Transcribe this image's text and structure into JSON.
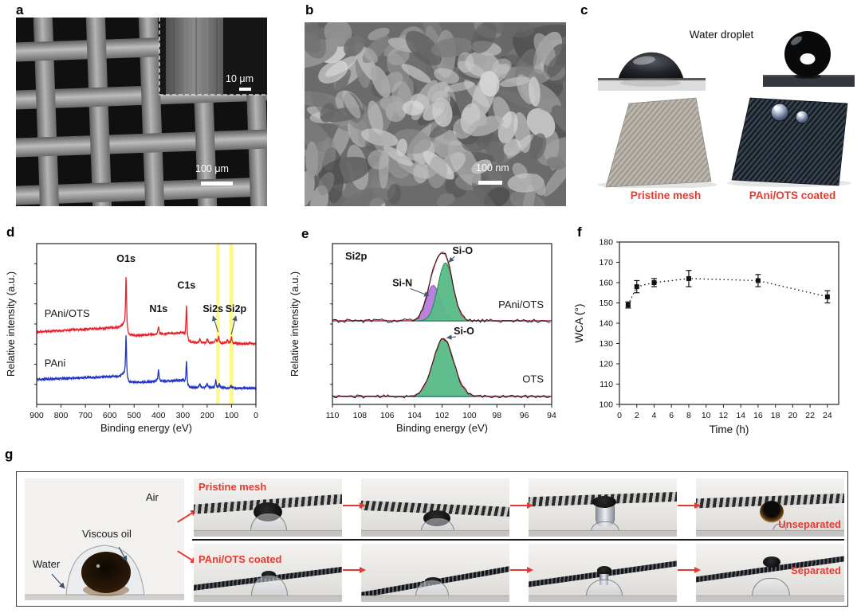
{
  "figure": {
    "panels": {
      "a": {
        "letter": "a",
        "scale_bar": "100 μm",
        "inset_scale_bar": "10 μm"
      },
      "b": {
        "letter": "b",
        "scale_bar": "100 nm"
      },
      "c": {
        "letter": "c",
        "heading": "Water droplet",
        "left_caption": "Pristine mesh",
        "right_caption": "PAni/OTS coated"
      },
      "d": {
        "letter": "d"
      },
      "e": {
        "letter": "e"
      },
      "f": {
        "letter": "f"
      },
      "g": {
        "letter": "g",
        "air_label": "Air",
        "oil_label": "Viscous oil",
        "water_label": "Water",
        "row1_label": "Pristine mesh",
        "row2_label": "PAni/OTS coated",
        "row1_result": "Unseparated",
        "row2_result": "Separated"
      }
    },
    "colors": {
      "accent_red": "#e8392f",
      "survey_red": "#e8232a",
      "survey_blue": "#2133c7",
      "fit_green": "#57bb86",
      "fit_green_stroke": "#1f8a4d",
      "fit_purple": "#b57bdb",
      "fit_purple_stroke": "#8b52c9",
      "fit_envelope_red": "#e04b55",
      "baseline_blue": "#2b3f9e",
      "highlight_yellow": "#fcf873",
      "annotation_arrow": "#44586e"
    }
  },
  "chart_data": [
    {
      "id": "xps-survey",
      "panel": "d",
      "type": "line",
      "xlabel": "Binding energy (eV)",
      "ylabel": "Relative intensity (a.u.)",
      "x_range": [
        900,
        0
      ],
      "x_ticks": [
        900,
        800,
        700,
        600,
        500,
        400,
        300,
        200,
        100,
        0
      ],
      "highlight_bands": [
        {
          "center": 156,
          "width": 14
        },
        {
          "center": 101,
          "width": 16
        }
      ],
      "series": [
        {
          "name": "PAni",
          "color_key": "survey_blue",
          "label_x": 868,
          "label_y": 0.235,
          "baseline": [
            [
              900,
              0.155
            ],
            [
              560,
              0.175
            ],
            [
              543,
              0.185
            ],
            [
              530,
              0.135
            ],
            [
              300,
              0.15
            ],
            [
              284,
              0.105
            ],
            [
              0,
              0.1
            ]
          ],
          "peaks": [
            {
              "c": 533,
              "h": 0.28,
              "w": 2.5
            },
            {
              "c": 400,
              "h": 0.07,
              "w": 2.5
            },
            {
              "c": 285,
              "h": 0.16,
              "w": 2.5
            },
            {
              "c": 230,
              "h": 0.02,
              "w": 3
            },
            {
              "c": 200,
              "h": 0.025,
              "w": 3
            },
            {
              "c": 165,
              "h": 0.045,
              "w": 2.5
            },
            {
              "c": 150,
              "h": 0.018,
              "w": 2.5
            },
            {
              "c": 102,
              "h": 0.015,
              "w": 3
            }
          ]
        },
        {
          "name": "PAni/OTS",
          "color_key": "survey_red",
          "label_x": 868,
          "label_y": 0.545,
          "baseline": [
            [
              900,
              0.45
            ],
            [
              560,
              0.48
            ],
            [
              543,
              0.49
            ],
            [
              530,
              0.425
            ],
            [
              300,
              0.445
            ],
            [
              284,
              0.385
            ],
            [
              0,
              0.375
            ]
          ],
          "peaks": [
            {
              "c": 533,
              "h": 0.355,
              "w": 2.5
            },
            {
              "c": 400,
              "h": 0.05,
              "w": 2.5
            },
            {
              "c": 285,
              "h": 0.23,
              "w": 2.5
            },
            {
              "c": 230,
              "h": 0.018,
              "w": 3
            },
            {
              "c": 200,
              "h": 0.022,
              "w": 3
            },
            {
              "c": 165,
              "h": 0.028,
              "w": 2.5
            },
            {
              "c": 153,
              "h": 0.042,
              "w": 2.5
            },
            {
              "c": 117,
              "h": 0.02,
              "w": 3
            },
            {
              "c": 100,
              "h": 0.036,
              "w": 2.5
            },
            {
              "c": 25,
              "h": 0.012,
              "w": 3
            }
          ]
        }
      ],
      "peak_labels": [
        {
          "text": "O1s",
          "x": 533,
          "y": 0.885
        },
        {
          "text": "N1s",
          "x": 400,
          "y": 0.575
        },
        {
          "text": "C1s",
          "x": 285,
          "y": 0.72
        },
        {
          "text": "Si2s",
          "x": 176,
          "y": 0.575,
          "arrow_from": [
            155,
            0.45
          ]
        },
        {
          "text": "Si2p",
          "x": 82,
          "y": 0.575,
          "arrow_from": [
            101,
            0.435
          ]
        }
      ]
    },
    {
      "id": "xps-si2p",
      "panel": "e",
      "type": "line",
      "title": "Si2p",
      "xlabel": "Binding energy (eV)",
      "ylabel": "Relative intensity (a.u.)",
      "x_range": [
        110,
        94
      ],
      "x_ticks": [
        110,
        108,
        106,
        104,
        102,
        100,
        98,
        96,
        94
      ],
      "groups": [
        {
          "name": "PAni/OTS",
          "name_y": 0.6,
          "baseline": 0.52,
          "noise": 0.012,
          "components": [
            {
              "label": "Si-N",
              "c": 102.65,
              "sigma": 0.52,
              "h": 0.22,
              "fill_key": "fit_purple",
              "stroke_key": "fit_purple_stroke",
              "label_x": 104.9,
              "label_y": 0.735,
              "arrow_to": [
                102.95,
                0.675
              ]
            },
            {
              "label": "Si-O",
              "c": 101.75,
              "sigma": 0.55,
              "h": 0.36,
              "fill_key": "fit_green",
              "stroke_key": "fit_green_stroke",
              "label_x": 100.5,
              "label_y": 0.935,
              "arrow_to": [
                101.5,
                0.885
              ]
            }
          ]
        },
        {
          "name": "OTS",
          "name_y": 0.135,
          "baseline": 0.05,
          "noise": 0.01,
          "components": [
            {
              "label": "Si-O",
              "c": 101.9,
              "sigma": 0.75,
              "h": 0.36,
              "fill_key": "fit_green",
              "stroke_key": "fit_green_stroke",
              "label_x": 100.4,
              "label_y": 0.435,
              "arrow_to": [
                101.65,
                0.415
              ]
            }
          ]
        }
      ]
    },
    {
      "id": "wca-vs-time",
      "panel": "f",
      "type": "scatter",
      "xlabel": "Time (h)",
      "ylabel": "WCA (°)",
      "x": [
        1,
        2,
        4,
        8,
        16,
        24
      ],
      "y": [
        149,
        158,
        160,
        162,
        161,
        153
      ],
      "yerr": [
        1.5,
        3,
        2,
        4,
        3,
        3
      ],
      "xlim": [
        0,
        25.3
      ],
      "ylim": [
        100,
        180
      ],
      "x_ticks": [
        0,
        2,
        4,
        6,
        8,
        10,
        12,
        14,
        16,
        18,
        20,
        22,
        24
      ],
      "y_ticks": [
        100,
        110,
        120,
        130,
        140,
        150,
        160,
        170,
        180
      ],
      "line_style": "dotted",
      "marker": "square",
      "marker_color": "#111111"
    }
  ]
}
